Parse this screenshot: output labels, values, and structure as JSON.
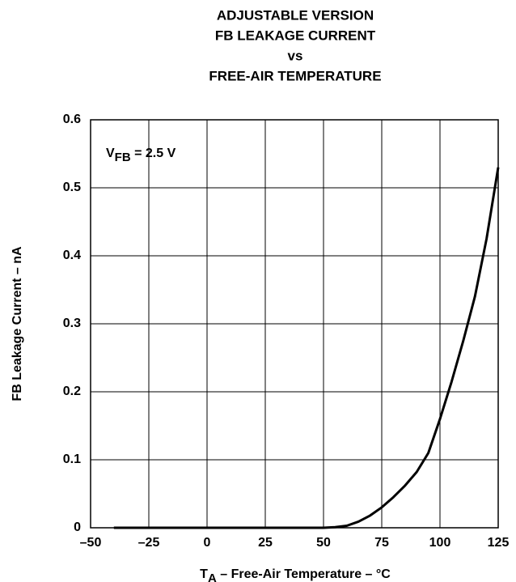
{
  "chart_data": {
    "type": "line",
    "title": [
      "ADJUSTABLE VERSION",
      "FB LEAKAGE CURRENT",
      "vs",
      "FREE-AIR TEMPERATURE"
    ],
    "annotation": {
      "main": "V",
      "sub": "FB",
      "rest": " = 2.5 V"
    },
    "y_label": "FB Leakage Current – nA",
    "x_label": {
      "main": "T",
      "sub": "A",
      "rest": " – Free-Air Temperature – °C"
    },
    "x": [
      -40,
      50,
      55,
      60,
      65,
      70,
      75,
      80,
      85,
      90,
      95,
      100,
      105,
      110,
      115,
      120,
      125
    ],
    "series": [
      {
        "name": "FB leakage",
        "color": "#000000",
        "values": [
          0,
          0,
          0.001,
          0.003,
          0.009,
          0.018,
          0.03,
          0.045,
          0.062,
          0.082,
          0.11,
          0.16,
          0.215,
          0.275,
          0.34,
          0.425,
          0.53
        ]
      }
    ],
    "xlim": [
      -50,
      125
    ],
    "xticks": [
      {
        "value": -50,
        "label": "–50"
      },
      {
        "value": -25,
        "label": "–25"
      },
      0,
      25,
      50,
      75,
      100,
      125
    ],
    "ylim": [
      0,
      0.6
    ],
    "yticks": [
      0,
      0.1,
      0.2,
      0.3,
      0.4,
      0.5,
      0.6
    ],
    "grid": true
  }
}
